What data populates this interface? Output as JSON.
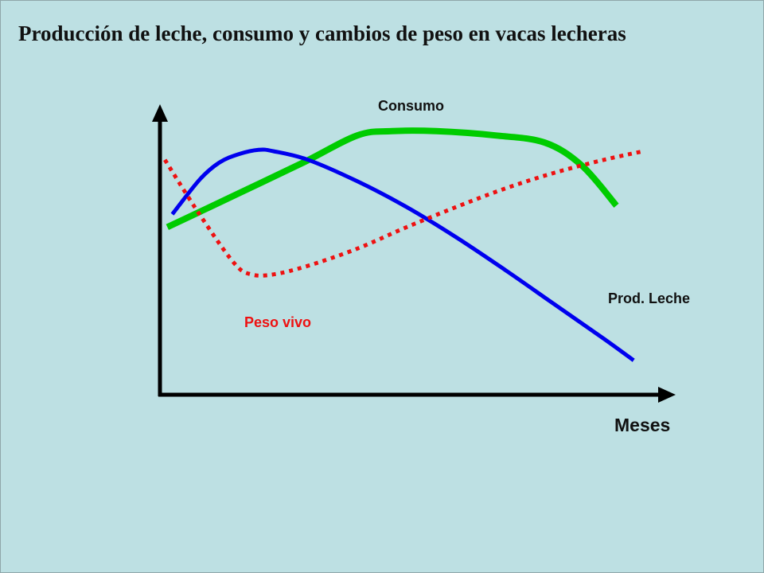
{
  "page": {
    "title": "Producción de leche, consumo y cambios de peso en vacas lecheras"
  },
  "chart_data": {
    "type": "line",
    "title": "Producción de leche, consumo y cambios de peso en vacas lecheras",
    "xlabel": "Meses",
    "ylabel": "",
    "xlim": [
      0,
      10
    ],
    "ylim": [
      0,
      10
    ],
    "grid": false,
    "legend": "inline labels",
    "series": [
      {
        "name": "Consumo",
        "color": "#00cc00",
        "style": "solid",
        "x": [
          0.15,
          1.5,
          2.9,
          4.0,
          4.7,
          5.6,
          6.8,
          7.8,
          8.55,
          9.25
        ],
        "y": [
          5.85,
          6.95,
          8.1,
          9.05,
          9.2,
          9.2,
          9.05,
          8.8,
          8.0,
          6.6
        ]
      },
      {
        "name": "Prod. Leche",
        "color": "#0000ee",
        "style": "solid",
        "x": [
          0.25,
          0.8,
          1.2,
          1.6,
          2.0,
          2.3,
          3.0,
          4.0,
          5.0,
          6.0,
          7.0,
          8.0,
          9.0,
          9.6
        ],
        "y": [
          6.3,
          7.5,
          8.1,
          8.4,
          8.55,
          8.5,
          8.2,
          7.45,
          6.55,
          5.5,
          4.35,
          3.15,
          1.95,
          1.2
        ]
      },
      {
        "name": "Peso vivo",
        "color": "#ee1111",
        "style": "dotted",
        "x": [
          0.1,
          0.8,
          1.5,
          1.85,
          2.3,
          3.0,
          4.0,
          5.0,
          6.0,
          7.0,
          8.0,
          9.0,
          9.8
        ],
        "y": [
          8.2,
          6.3,
          4.6,
          4.2,
          4.2,
          4.5,
          5.1,
          5.85,
          6.55,
          7.2,
          7.75,
          8.2,
          8.5
        ]
      }
    ],
    "annotations": [
      {
        "text": "Consumo",
        "series": "Consumo",
        "color": "#111111"
      },
      {
        "text": "Prod. Leche",
        "series": "Prod. Leche",
        "color": "#111111"
      },
      {
        "text": "Peso vivo",
        "series": "Peso vivo",
        "color": "#ee1111"
      }
    ]
  }
}
